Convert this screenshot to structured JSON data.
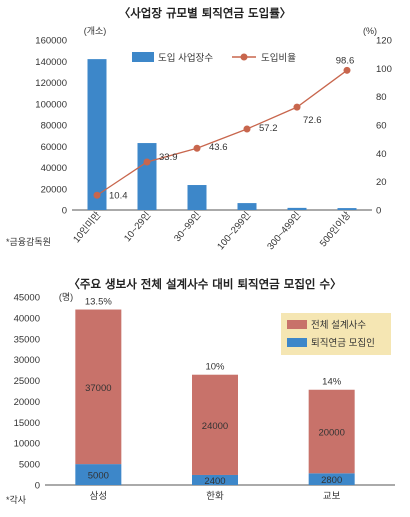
{
  "chart_data": [
    {
      "type": "bar",
      "title": "〈사업장 규모별 퇴직연금 도입률〉",
      "y_unit": "(개소)",
      "y2_unit": "(%)",
      "ylim": [
        0,
        160000
      ],
      "y_ticks": [
        "0",
        "20000",
        "40000",
        "60000",
        "80000",
        "100000",
        "120000",
        "140000",
        "160000"
      ],
      "y2lim": [
        0,
        120
      ],
      "y2_ticks": [
        "0",
        "20",
        "40",
        "60",
        "80",
        "100",
        "120"
      ],
      "categories": [
        "10인미만",
        "10~29인",
        "30~99인",
        "100~299인",
        "300~499인",
        "500인이상"
      ],
      "series": [
        {
          "name": "도입 사업장수",
          "type": "bar",
          "color": "#3d87c9",
          "values": [
            142000,
            63000,
            23500,
            6500,
            2000,
            1800
          ]
        },
        {
          "name": "도입비율",
          "type": "line",
          "color": "#c8664d",
          "values": [
            10.4,
            33.9,
            43.6,
            57.2,
            72.6,
            98.6
          ],
          "labels": [
            "10.4",
            "33.9",
            "43.6",
            "57.2",
            "72.6",
            "98.6"
          ]
        }
      ],
      "source": "*금융감독원",
      "legend": "top-right"
    },
    {
      "type": "bar",
      "stacked": true,
      "title": "〈주요 생보사 전체 설계사수 대비 퇴직연금 모집인 수〉",
      "y_unit": "(명)",
      "ylim": [
        0,
        45000
      ],
      "y_ticks": [
        "0",
        "5000",
        "10000",
        "15000",
        "20000",
        "25000",
        "30000",
        "35000",
        "40000",
        "45000"
      ],
      "categories": [
        "삼성",
        "한화",
        "교보"
      ],
      "series": [
        {
          "name": "퇴직연금 모집인",
          "color": "#3d87c9",
          "values": [
            5000,
            2400,
            2800
          ],
          "labels": [
            "5000",
            "2400",
            "2800"
          ]
        },
        {
          "name": "전체 설계사수",
          "color": "#c8726a",
          "values": [
            37000,
            24000,
            20000
          ],
          "labels": [
            "37000",
            "24000",
            "20000"
          ]
        }
      ],
      "ratios": [
        "13.5%",
        "10%",
        "14%"
      ],
      "legend_order": [
        "전체 설계사수",
        "퇴직연금 모집인"
      ],
      "source": "*각사",
      "legend": "top-right"
    }
  ]
}
